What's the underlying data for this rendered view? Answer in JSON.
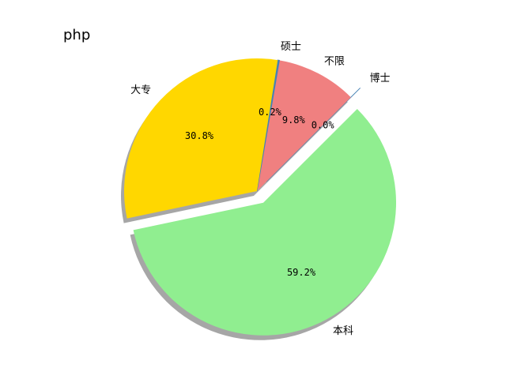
{
  "chart_data": {
    "type": "pie",
    "title": "php",
    "start_angle_deg": 45,
    "direction": "counterclockwise",
    "shadow": true,
    "slices": [
      {
        "label": "博士",
        "value": 0.0,
        "pct_label": "0.0%",
        "color": "#4682b4",
        "explode": 0.1
      },
      {
        "label": "不限",
        "value": 9.8,
        "pct_label": "9.8%",
        "color": "#f08080",
        "explode": 0.0
      },
      {
        "label": "硕士",
        "value": 0.2,
        "pct_label": "0.2%",
        "color": "#4682b4",
        "explode": 0.0
      },
      {
        "label": "大专",
        "value": 30.8,
        "pct_label": "30.8%",
        "color": "#ffd700",
        "explode": 0.0
      },
      {
        "label": "本科",
        "value": 59.2,
        "pct_label": "59.2%",
        "color": "#90ee90",
        "explode": 0.1
      }
    ]
  }
}
